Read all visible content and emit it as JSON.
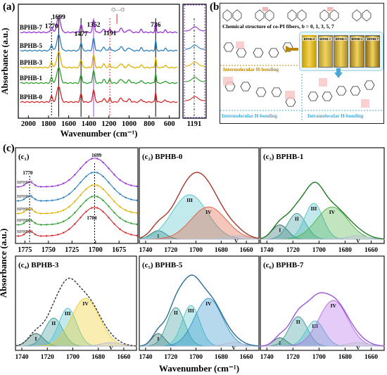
{
  "panel_a": {
    "label": "(a)",
    "ylabel": "Absorbance (a.u.)",
    "xlabel": "Wavenumber (cm⁻¹)",
    "xticks": [
      "2000",
      "1800",
      "1600",
      "1400",
      "1200",
      "1000",
      "800",
      "600"
    ],
    "inset_tick": "1191",
    "peaks": [
      "1770",
      "1699",
      "1477",
      "1352",
      "1191",
      "736"
    ],
    "series": [
      "BPHB-7",
      "BPHB-5",
      "BPHB-3",
      "BPHB-1",
      "BPHB-0"
    ],
    "colors": [
      "#9b30d9",
      "#2a7fc0",
      "#e0b000",
      "#2ca02c",
      "#d62728"
    ]
  },
  "panel_b": {
    "label": "(b)",
    "title": "Chemical structure of co-PI fibers, b = 0, 1, 3, 5, 7",
    "fibers": [
      "BPHB-0",
      "BPHB-1",
      "BPHB-3",
      "BPHB-5",
      "BPHB-7"
    ],
    "inter1": "Intermolecular H-bonding",
    "inter2": "Intermolecular H-bonding",
    "intra": "Intramolecular H-bonding"
  },
  "panel_c": {
    "label": "(c)",
    "ylabel": "Absorbance (a.u.)",
    "xlabel": "Wavenumber (cm⁻¹)",
    "c1": {
      "label": "(c₁)",
      "xticks": [
        "1775",
        "1750",
        "1725",
        "1700",
        "1675"
      ],
      "peak_top": "1699",
      "peak_left": "1770",
      "peak_mid": "1704",
      "series": [
        "BPHB-7",
        "BPHB-5",
        "BPHB-3",
        "BPHB-1",
        "BPHB-0"
      ]
    },
    "sub_xticks": [
      "1740",
      "1720",
      "1700",
      "1680",
      "1660"
    ],
    "roman": [
      "I",
      "II",
      "III",
      "IV",
      "V"
    ],
    "subs": [
      {
        "label": "(c₂)",
        "name": "BPHB-0"
      },
      {
        "label": "(c₃)",
        "name": "BPHB-1"
      },
      {
        "label": "(c₄)",
        "name": "BPHB-3"
      },
      {
        "label": "(c₅)",
        "name": "BPHB-5"
      },
      {
        "label": "(c₆)",
        "name": "BPHB-7"
      }
    ]
  },
  "chart_data": [
    {
      "type": "line",
      "title": "",
      "xlabel": "Wavenumber (cm⁻¹)",
      "ylabel": "Absorbance (a.u.)",
      "xlim": [
        2100,
        500
      ],
      "categories_peaks": [
        1770,
        1699,
        1477,
        1352,
        1191,
        736
      ],
      "series": [
        {
          "name": "BPHB-7"
        },
        {
          "name": "BPHB-5"
        },
        {
          "name": "BPHB-3"
        },
        {
          "name": "BPHB-1"
        },
        {
          "name": "BPHB-0"
        }
      ]
    },
    {
      "type": "line",
      "xlabel": "Wavenumber (cm⁻¹)",
      "ylabel": "Absorbance (a.u.)",
      "xlim": [
        1785,
        1655
      ],
      "series": [
        {
          "name": "BPHB-7"
        },
        {
          "name": "BPHB-5"
        },
        {
          "name": "BPHB-3"
        },
        {
          "name": "BPHB-1"
        },
        {
          "name": "BPHB-0"
        }
      ]
    },
    {
      "type": "area",
      "name": "BPHB-0",
      "xlim": [
        1745,
        1650
      ],
      "peaks": [
        {
          "label": "I",
          "center": 1730,
          "height": 0.12,
          "width": 6
        },
        {
          "label": "III",
          "center": 1705,
          "height": 0.62,
          "width": 14
        },
        {
          "label": "IV",
          "center": 1690,
          "height": 0.45,
          "width": 14
        },
        {
          "label": "V",
          "center": 1668,
          "height": 0.05,
          "width": 8
        }
      ]
    },
    {
      "type": "area",
      "name": "BPHB-1",
      "xlim": [
        1745,
        1650
      ],
      "peaks": [
        {
          "label": "I",
          "center": 1730,
          "height": 0.2,
          "width": 6
        },
        {
          "label": "II",
          "center": 1717,
          "height": 0.36,
          "width": 7
        },
        {
          "label": "III",
          "center": 1704,
          "height": 0.5,
          "width": 7
        },
        {
          "label": "IV",
          "center": 1690,
          "height": 0.45,
          "width": 12
        },
        {
          "label": "V",
          "center": 1670,
          "height": 0.05,
          "width": 8
        }
      ]
    },
    {
      "type": "area",
      "name": "BPHB-3",
      "xlim": [
        1745,
        1650
      ],
      "peaks": [
        {
          "label": "I",
          "center": 1729,
          "height": 0.18,
          "width": 6
        },
        {
          "label": "II",
          "center": 1715,
          "height": 0.4,
          "width": 7
        },
        {
          "label": "III",
          "center": 1704,
          "height": 0.54,
          "width": 7
        },
        {
          "label": "IV",
          "center": 1690,
          "height": 0.68,
          "width": 11
        },
        {
          "label": "V",
          "center": 1670,
          "height": 0.05,
          "width": 8
        }
      ]
    },
    {
      "type": "area",
      "name": "BPHB-5",
      "xlim": [
        1745,
        1650
      ],
      "peaks": [
        {
          "label": "I",
          "center": 1730,
          "height": 0.18,
          "width": 5
        },
        {
          "label": "II",
          "center": 1716,
          "height": 0.55,
          "width": 7
        },
        {
          "label": "III",
          "center": 1704,
          "height": 0.58,
          "width": 7
        },
        {
          "label": "IV",
          "center": 1690,
          "height": 0.68,
          "width": 11
        },
        {
          "label": "V",
          "center": 1670,
          "height": 0.05,
          "width": 8
        }
      ]
    },
    {
      "type": "area",
      "name": "BPHB-7",
      "xlim": [
        1745,
        1650
      ],
      "peaks": [
        {
          "label": "I",
          "center": 1730,
          "height": 0.12,
          "width": 5
        },
        {
          "label": "II",
          "center": 1716,
          "height": 0.42,
          "width": 7
        },
        {
          "label": "III",
          "center": 1703,
          "height": 0.36,
          "width": 7
        },
        {
          "label": "IV",
          "center": 1689,
          "height": 0.65,
          "width": 11
        },
        {
          "label": "V",
          "center": 1670,
          "height": 0.05,
          "width": 8
        }
      ]
    }
  ]
}
